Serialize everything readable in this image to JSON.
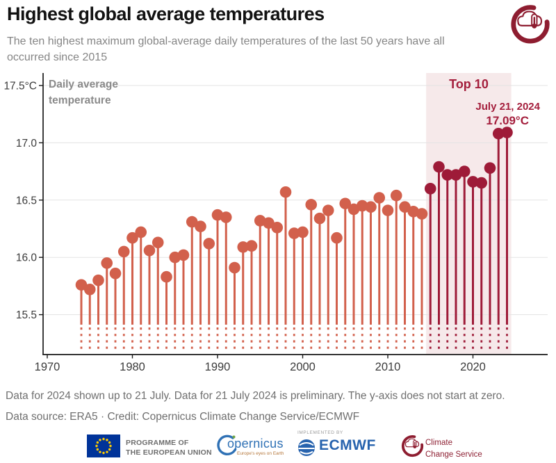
{
  "header": {
    "title": "Highest global average temperatures",
    "subtitle": "The ten highest maximum global-average daily temperatures of the last 50 years have all occurred since 2015"
  },
  "chart_data": {
    "type": "lollipop",
    "inline_axis_title": "Daily average temperature",
    "x": [
      1974,
      1975,
      1976,
      1977,
      1978,
      1979,
      1980,
      1981,
      1982,
      1983,
      1984,
      1985,
      1986,
      1987,
      1988,
      1989,
      1990,
      1991,
      1992,
      1993,
      1994,
      1995,
      1996,
      1997,
      1998,
      1999,
      2000,
      2001,
      2002,
      2003,
      2004,
      2005,
      2006,
      2007,
      2008,
      2009,
      2010,
      2011,
      2012,
      2013,
      2014,
      2015,
      2016,
      2017,
      2018,
      2019,
      2020,
      2021,
      2022,
      2023,
      2024
    ],
    "values": [
      15.76,
      15.72,
      15.8,
      15.95,
      15.86,
      16.05,
      16.17,
      16.22,
      16.06,
      16.13,
      15.83,
      16.0,
      16.02,
      16.31,
      16.27,
      16.12,
      16.37,
      16.35,
      15.91,
      16.09,
      16.1,
      16.32,
      16.3,
      16.26,
      16.57,
      16.21,
      16.22,
      16.46,
      16.34,
      16.41,
      16.17,
      16.47,
      16.42,
      16.45,
      16.44,
      16.52,
      16.41,
      16.54,
      16.44,
      16.4,
      16.38,
      16.6,
      16.79,
      16.72,
      16.72,
      16.75,
      16.66,
      16.65,
      16.78,
      17.08,
      17.09
    ],
    "x_ticks": [
      "1970",
      "1980",
      "1990",
      "2000",
      "2010",
      "2020"
    ],
    "y_ticks": [
      {
        "value": 17.5,
        "label": "17.5°C"
      },
      {
        "value": 17.0,
        "label": "17.0"
      },
      {
        "value": 16.5,
        "label": "16.5"
      },
      {
        "value": 16.0,
        "label": "16.0"
      },
      {
        "value": 15.5,
        "label": "15.5"
      }
    ],
    "ylim": [
      15.2,
      17.6
    ],
    "grid": "horizontal",
    "legend_position": "none",
    "highlight": {
      "label": "Top 10",
      "from_year": 2015,
      "to_year": 2024,
      "annotation_date": "July 21, 2024",
      "annotation_value": "17.09°C"
    },
    "colors": {
      "default": "#d2604c",
      "top10": "#9e1b38",
      "band": "#f6e9ea",
      "band_label": "#a41e3c",
      "grid": "#e3e3e3",
      "axis": "#1a1a1a"
    }
  },
  "footer": {
    "note": "Data for 2024 shown up to 21 July. Data for 21 July 2024 is preliminary. The y-axis does not start at zero.",
    "source": "Data source: ERA5 · Credit: Copernicus Climate Change Service/ECMWF"
  },
  "logos": {
    "eu": {
      "line1": "PROGRAMME OF",
      "line2": "THE EUROPEAN UNION"
    },
    "copernicus": {
      "name": "opernicus",
      "tagline": "Europe's eyes on Earth"
    },
    "ecmwf": {
      "implemented_by": "IMPLEMENTED BY",
      "name": "ECMWF"
    },
    "c3s": {
      "line1": "Climate",
      "line2": "Change Service"
    }
  }
}
